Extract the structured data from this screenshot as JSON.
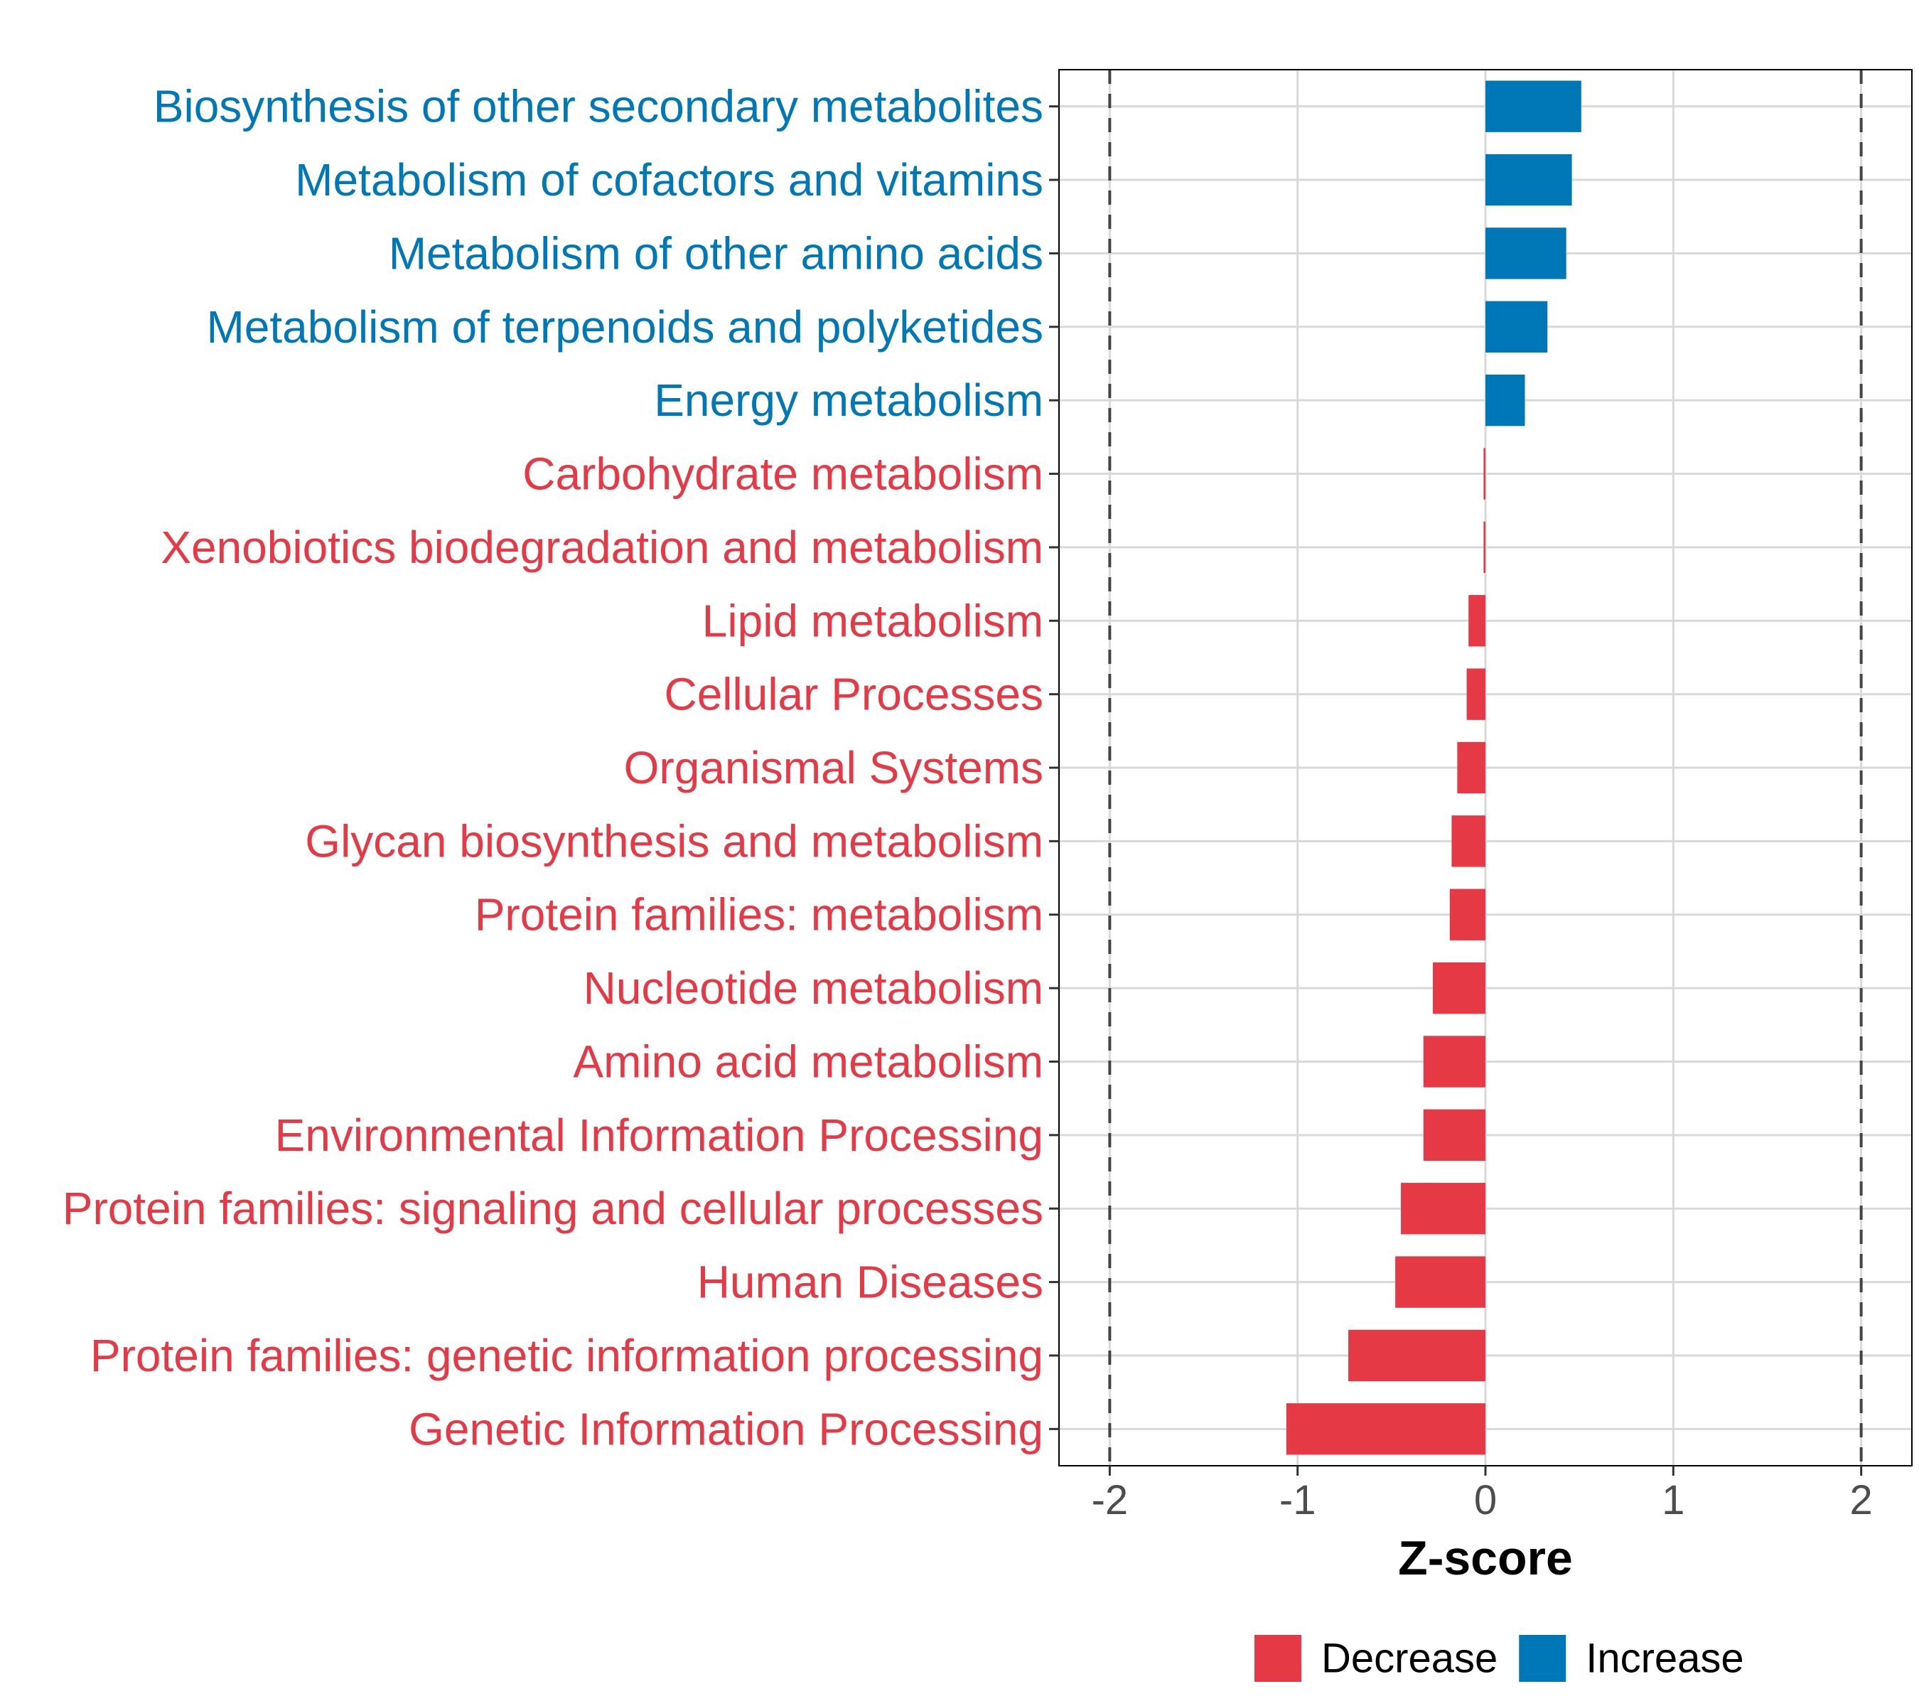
{
  "chart_data": {
    "type": "bar",
    "orientation": "horizontal",
    "title": "",
    "xlabel": "Z-score",
    "ylabel": "",
    "xlim": [
      -2.27,
      2.27
    ],
    "x_ticks": [
      -2,
      -1,
      0,
      1,
      2
    ],
    "x_tick_labels": [
      "-2",
      "-1",
      "0",
      "1",
      "2"
    ],
    "reference_lines": [
      -2,
      2
    ],
    "grid": true,
    "categories": [
      "Biosynthesis of other secondary metabolites",
      "Metabolism of cofactors and vitamins",
      "Metabolism of other amino acids",
      "Metabolism of terpenoids and polyketides",
      "Energy metabolism",
      "Carbohydrate metabolism",
      "Xenobiotics biodegradation and metabolism",
      "Lipid metabolism",
      "Cellular Processes",
      "Organismal Systems",
      "Glycan biosynthesis and metabolism",
      "Protein families: metabolism",
      "Nucleotide metabolism",
      "Amino acid metabolism",
      "Environmental Information Processing",
      "Protein families: signaling and cellular processes",
      "Human Diseases",
      "Protein families: genetic information processing",
      "Genetic Information Processing"
    ],
    "values": [
      0.51,
      0.46,
      0.43,
      0.33,
      0.21,
      -0.01,
      -0.01,
      -0.09,
      -0.1,
      -0.15,
      -0.18,
      -0.19,
      -0.28,
      -0.33,
      -0.33,
      -0.45,
      -0.48,
      -0.73,
      -1.06
    ],
    "groups": [
      "Increase",
      "Increase",
      "Increase",
      "Increase",
      "Increase",
      "Decrease",
      "Decrease",
      "Decrease",
      "Decrease",
      "Decrease",
      "Decrease",
      "Decrease",
      "Decrease",
      "Decrease",
      "Decrease",
      "Decrease",
      "Decrease",
      "Decrease",
      "Decrease"
    ],
    "legend": {
      "position": "bottom",
      "entries": [
        {
          "name": "Decrease",
          "color": "#e63946"
        },
        {
          "name": "Increase",
          "color": "#0077b6"
        }
      ]
    }
  }
}
